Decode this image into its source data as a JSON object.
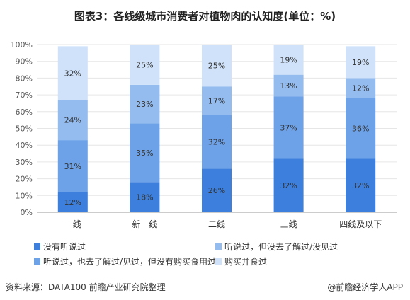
{
  "title": "图表3：各线级城市消费者对植物肉的认知度(单位：%)",
  "source_text": "资料来源：DATA100 前瞻产业研究院整理",
  "credit_text": "@前瞻经济学人APP",
  "chart_data": {
    "type": "bar",
    "stacked": true,
    "categories": [
      "一线",
      "新一线",
      "二线",
      "三线",
      "四线及以下"
    ],
    "ylim": [
      0,
      100
    ],
    "yticks": [
      "0%",
      "10%",
      "20%",
      "30%",
      "40%",
      "50%",
      "60%",
      "70%",
      "80%",
      "90%",
      "100%"
    ],
    "series": [
      {
        "name": "没有听说过",
        "color": "#3c7fdc",
        "values": [
          12,
          18,
          26,
          32,
          32
        ]
      },
      {
        "name": "听说过，也去了解过/见过，但没有购买食用过",
        "color": "#6da2e8",
        "values": [
          31,
          35,
          32,
          37,
          36
        ]
      },
      {
        "name": "听说过，但没去了解过/没见过",
        "color": "#94bcef",
        "values": [
          24,
          23,
          17,
          13,
          12
        ]
      },
      {
        "name": "购买并食过",
        "color": "#cfe2f9",
        "values": [
          32,
          25,
          25,
          19,
          19
        ]
      }
    ],
    "value_suffix": "%",
    "legend_position": "bottom"
  }
}
